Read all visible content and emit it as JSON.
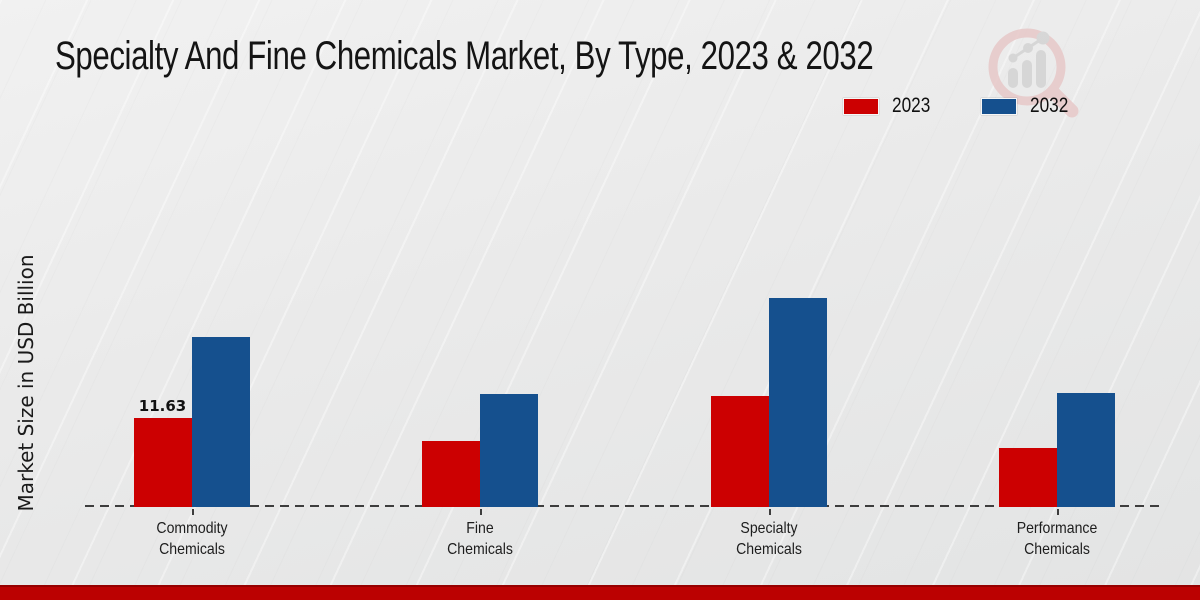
{
  "chart_data": {
    "type": "bar",
    "title": "Specialty And Fine Chemicals Market, By Type, 2023 & 2032",
    "xlabel": "",
    "ylabel": "Market Size in USD Billion",
    "categories": [
      "Commodity Chemicals",
      "Fine Chemicals",
      "Specialty Chemicals",
      "Performance Chemicals"
    ],
    "series": [
      {
        "name": "2023",
        "color": "#cc0001",
        "values": [
          11.63,
          8.6,
          14.5,
          7.7
        ]
      },
      {
        "name": "2032",
        "color": "#15508e",
        "values": [
          22.2,
          14.8,
          27.3,
          14.9
        ]
      }
    ],
    "ylim": [
      0,
      30
    ],
    "grid": false,
    "legend_position": "top-right",
    "baseline_style": "dashed",
    "data_labels": [
      {
        "series": "2023",
        "category_index": 0,
        "text": "11.63"
      }
    ]
  },
  "branding": {
    "watermark_icon": "magnifier-growth-chart-logo",
    "watermark_ring_color": "#e7c6c6",
    "watermark_bars_color": "#d2d2d2",
    "footer_bar_color": "#bb0101"
  }
}
